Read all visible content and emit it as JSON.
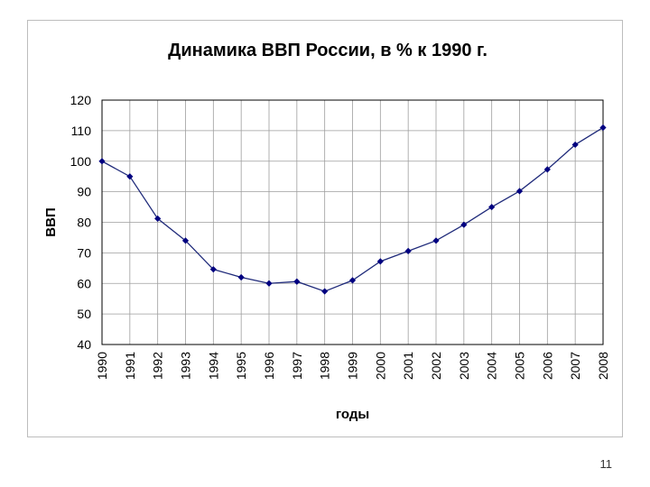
{
  "page": {
    "number": "11"
  },
  "chart_data": {
    "type": "line",
    "title": "Динамика ВВП России, в % к 1990 г.",
    "xlabel": "годы",
    "ylabel": "ВВП",
    "ylim": [
      40,
      120
    ],
    "yticks": [
      40,
      50,
      60,
      70,
      80,
      90,
      100,
      110,
      120
    ],
    "grid": true,
    "legend": "none",
    "categories": [
      "1990",
      "1991",
      "1992",
      "1993",
      "1994",
      "1995",
      "1996",
      "1997",
      "1998",
      "1999",
      "2000",
      "2001",
      "2002",
      "2003",
      "2004",
      "2005",
      "2006",
      "2007",
      "2008"
    ],
    "series": [
      {
        "values": [
          100,
          95,
          81.2,
          74,
          64.6,
          62,
          60,
          60.6,
          57.4,
          61,
          67.2,
          70.6,
          74,
          79.2,
          85,
          90.2,
          97.3,
          105.4,
          111
        ],
        "color": "#000080"
      }
    ]
  }
}
